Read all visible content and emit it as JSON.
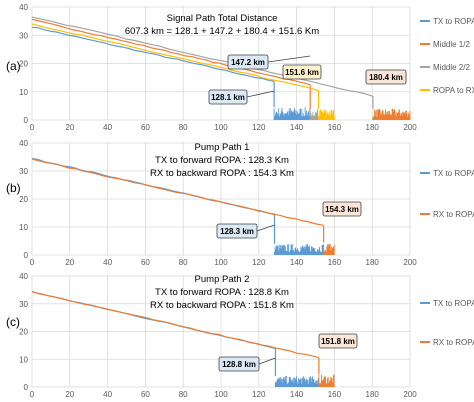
{
  "figure": {
    "panels": [
      {
        "label": "(a)",
        "title_lines": [
          "Signal Path Total Distance",
          "607.3 km = 128.1 + 147.2 + 180.4 + 151.6 Km"
        ],
        "legend": [
          "TX to ROPA",
          "Middle 1/2",
          "Middle 2/2",
          "ROPA to RX"
        ],
        "callouts": [
          "128.1 km",
          "147.2 km",
          "151.6 km",
          "180.4 km"
        ]
      },
      {
        "label": "(b)",
        "title_lines": [
          "Pump Path 1",
          "TX to forward ROPA : 128.3 Km",
          "RX to backward ROPA : 154.3 Km"
        ],
        "legend": [
          "TX to ROPA",
          "RX to ROPA"
        ],
        "callouts": [
          "128.3 km",
          "154.3 km"
        ]
      },
      {
        "label": "(c)",
        "title_lines": [
          "Pump Path 2",
          "TX to forward ROPA : 128.8 Km",
          "RX to backward ROPA : 151.8 Km"
        ],
        "legend": [
          "TX to ROPA",
          "RX to ROPA"
        ],
        "callouts": [
          "128.8 km",
          "151.8 km"
        ]
      }
    ]
  },
  "colors": {
    "tx": "#5b9bd5",
    "middle1": "#ed7d31",
    "middle2": "#a5a5a5",
    "rx": "#ffc000",
    "rx_pump": "#ed7d31",
    "grid": "#d9d9d9",
    "callout_a": [
      "#dbe9f6",
      "#dbe9f6",
      "#fff2cc",
      "#fbe5d6"
    ],
    "callout_b": [
      "#dbe9f6",
      "#fbe5d6"
    ],
    "callout_c": [
      "#dbe9f6",
      "#fbe5d6"
    ]
  },
  "chart_data": [
    {
      "type": "line",
      "panel": "(a)",
      "title": "Signal Path Total Distance",
      "subtitle": "607.3 km = 128.1 + 147.2 + 180.4 + 151.6 Km",
      "xlim": [
        0,
        200
      ],
      "ylim": [
        0,
        40
      ],
      "xticks": [
        0,
        20,
        40,
        60,
        80,
        100,
        120,
        140,
        160,
        180,
        200
      ],
      "yticks": [
        0,
        10,
        20,
        30,
        40
      ],
      "grid": true,
      "legend_position": "right",
      "series": [
        {
          "name": "TX to ROPA",
          "x": [
            0,
            128.1
          ],
          "y": [
            33,
            13.6
          ],
          "noise_x": [
            128.1,
            147.2
          ],
          "noise_y": [
            1,
            4.5
          ]
        },
        {
          "name": "Middle 1/2",
          "x": [
            0,
            147.2
          ],
          "y": [
            35.5,
            12.5
          ],
          "noise_x": [
            180.4,
            200
          ],
          "noise_y": [
            1,
            4
          ]
        },
        {
          "name": "Middle 2/2",
          "x": [
            0,
            180.4
          ],
          "y": [
            36.5,
            8.5
          ],
          "noise_x": [
            147.2,
            151.6
          ],
          "noise_y": [
            1,
            4
          ]
        },
        {
          "name": "ROPA to RX",
          "x": [
            0,
            151.6
          ],
          "y": [
            34,
            10.5
          ],
          "noise_x": [
            151.6,
            160
          ],
          "noise_y": [
            1,
            4
          ]
        }
      ],
      "annotations": [
        {
          "text": "128.1 km",
          "x": 128.1
        },
        {
          "text": "147.2 km",
          "x": 147.2
        },
        {
          "text": "151.6 km",
          "x": 151.6
        },
        {
          "text": "180.4 km",
          "x": 180.4
        }
      ]
    },
    {
      "type": "line",
      "panel": "(b)",
      "title": "Pump Path 1",
      "subtitle": "TX to forward ROPA : 128.3 Km / RX to backward ROPA : 154.3 Km",
      "xlim": [
        0,
        200
      ],
      "ylim": [
        0,
        40
      ],
      "xticks": [
        0,
        20,
        40,
        60,
        80,
        100,
        120,
        140,
        160,
        180,
        200
      ],
      "yticks": [
        0,
        10,
        20,
        30,
        40
      ],
      "grid": true,
      "legend_position": "right",
      "series": [
        {
          "name": "TX to ROPA",
          "x": [
            0,
            128.3
          ],
          "y": [
            34.5,
            14.5
          ],
          "noise_x": [
            128.3,
            154.3
          ],
          "noise_y": [
            1,
            4
          ]
        },
        {
          "name": "RX to ROPA",
          "x": [
            0,
            154.3
          ],
          "y": [
            34.2,
            10.5
          ],
          "noise_x": [
            154.3,
            160
          ],
          "noise_y": [
            1,
            4.5
          ]
        }
      ],
      "annotations": [
        {
          "text": "128.3 km",
          "x": 128.3
        },
        {
          "text": "154.3 km",
          "x": 154.3
        }
      ]
    },
    {
      "type": "line",
      "panel": "(c)",
      "title": "Pump Path 2",
      "subtitle": "TX to forward ROPA : 128.8 Km / RX to backward ROPA : 151.8 Km",
      "xlim": [
        0,
        200
      ],
      "ylim": [
        0,
        40
      ],
      "xticks": [
        0,
        20,
        40,
        60,
        80,
        100,
        120,
        140,
        160,
        180,
        200
      ],
      "yticks": [
        0,
        10,
        20,
        30,
        40
      ],
      "grid": true,
      "legend_position": "right",
      "series": [
        {
          "name": "TX to ROPA",
          "x": [
            0,
            128.8
          ],
          "y": [
            34.3,
            14
          ],
          "noise_x": [
            128.8,
            151.8
          ],
          "noise_y": [
            1,
            4
          ]
        },
        {
          "name": "RX to ROPA",
          "x": [
            0,
            151.8
          ],
          "y": [
            34.3,
            10.5
          ],
          "noise_x": [
            151.8,
            160
          ],
          "noise_y": [
            1,
            4.5
          ]
        }
      ],
      "annotations": [
        {
          "text": "128.8 km",
          "x": 128.8
        },
        {
          "text": "151.8 km",
          "x": 151.8
        }
      ]
    }
  ]
}
